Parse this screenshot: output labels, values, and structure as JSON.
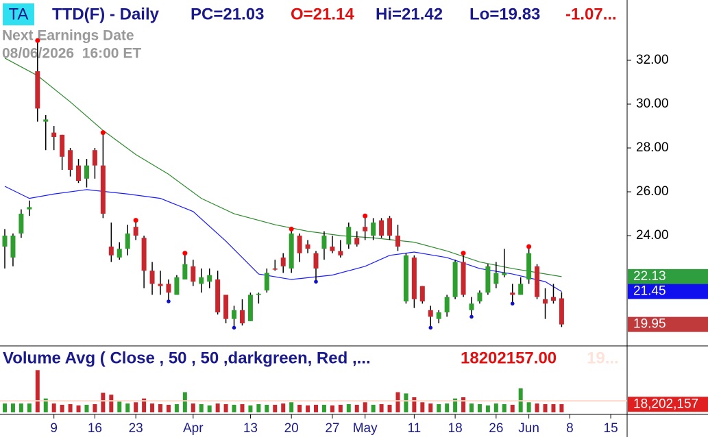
{
  "chart_data": {
    "type": "candlestick",
    "header": {
      "badge": "TA",
      "symbol": "TTD(F) - Daily",
      "pc": "PC=21.03",
      "open": "O=21.14",
      "high": "Hi=21.42",
      "low": "Lo=19.83",
      "change": "-1.07...",
      "note": "Next Earnings Date",
      "note_date": "08/06/2026  16:00 ET"
    },
    "open": [
      23.5,
      23.0,
      24.1,
      25.2,
      31.5,
      29.2,
      28.7,
      28.6,
      27.9,
      27.2,
      26.6,
      27.9,
      27.2,
      23.5,
      23.0,
      23.4,
      24.4,
      23.9,
      22.4,
      21.8,
      21.8,
      21.3,
      22.0,
      22.6,
      21.8,
      21.9,
      22.0,
      21.3,
      20.2,
      20.6,
      20.1,
      21.3,
      21.5,
      22.5,
      23.0,
      22.5,
      24.0,
      23.6,
      23.2,
      23.4,
      23.5,
      23.3,
      23.6,
      23.9,
      24.4,
      24.0,
      24.7,
      24.8,
      24.0,
      21.0,
      23.0,
      21.7,
      20.6,
      20.2,
      20.5,
      21.2,
      22.8,
      20.6,
      21.0,
      21.4,
      21.8,
      22.2,
      21.4,
      21.3,
      22.0,
      22.6,
      21.1,
      21.2,
      21.14
    ],
    "high": [
      24.3,
      24.1,
      25.2,
      25.6,
      32.9,
      29.5,
      29.0,
      28.6,
      28.0,
      27.5,
      27.5,
      28.0,
      28.7,
      24.6,
      23.7,
      24.5,
      24.7,
      24.0,
      22.8,
      22.4,
      22.0,
      22.2,
      23.2,
      22.9,
      22.5,
      22.5,
      22.4,
      21.3,
      20.8,
      21.1,
      21.4,
      21.4,
      22.5,
      22.9,
      23.2,
      24.3,
      24.1,
      23.8,
      23.3,
      24.2,
      24.0,
      23.8,
      24.6,
      24.2,
      24.9,
      24.8,
      24.8,
      24.9,
      24.5,
      23.2,
      23.1,
      21.7,
      20.8,
      20.6,
      21.3,
      22.9,
      23.2,
      21.2,
      21.5,
      22.7,
      22.8,
      23.4,
      21.8,
      22.1,
      23.5,
      22.7,
      21.6,
      21.8,
      21.42
    ],
    "low": [
      22.5,
      22.6,
      23.9,
      24.9,
      29.2,
      27.9,
      27.9,
      27.0,
      26.7,
      26.4,
      26.2,
      26.6,
      24.8,
      22.8,
      22.9,
      23.1,
      23.8,
      21.6,
      21.3,
      21.3,
      21.0,
      21.3,
      22.0,
      21.7,
      21.4,
      21.6,
      20.4,
      20.0,
      19.8,
      19.9,
      20.1,
      20.9,
      21.4,
      22.4,
      22.3,
      22.3,
      22.8,
      23.2,
      21.9,
      22.9,
      23.2,
      23.0,
      23.4,
      23.5,
      23.8,
      23.8,
      23.9,
      23.8,
      23.3,
      20.9,
      20.7,
      20.9,
      19.8,
      20.0,
      20.3,
      21.1,
      21.2,
      20.3,
      20.9,
      21.3,
      21.6,
      22.1,
      20.9,
      21.3,
      21.8,
      21.1,
      20.2,
      20.9,
      19.83
    ],
    "close": [
      24.0,
      24.0,
      25.0,
      25.3,
      29.8,
      29.3,
      28.5,
      27.6,
      27.0,
      26.5,
      27.2,
      27.2,
      25.0,
      23.1,
      23.4,
      24.1,
      24.0,
      22.4,
      21.8,
      21.7,
      21.4,
      22.1,
      22.7,
      21.9,
      22.1,
      22.2,
      20.5,
      20.2,
      20.6,
      20.0,
      21.3,
      21.35,
      22.3,
      22.45,
      22.6,
      24.1,
      23.2,
      23.4,
      22.5,
      24.0,
      23.3,
      23.1,
      24.4,
      23.6,
      24.2,
      24.6,
      24.0,
      24.0,
      23.5,
      23.1,
      21.1,
      21.0,
      20.3,
      20.5,
      21.2,
      22.8,
      21.3,
      20.9,
      21.4,
      22.6,
      22.3,
      22.3,
      21.3,
      21.8,
      23.2,
      21.2,
      20.9,
      21.03,
      19.95
    ],
    "up_color": "#2e9e2e",
    "down_color": "#c8282d",
    "high_markers": [
      4,
      12,
      16,
      22,
      35,
      44,
      56,
      64
    ],
    "high_marker_color": "#ff0000",
    "low_markers": [
      20,
      28,
      38,
      52,
      57,
      62
    ],
    "low_marker_color": "#1010c8",
    "lines": [
      {
        "color": "#2e8b2e",
        "x": [
          0,
          4,
          8,
          12,
          16,
          20,
          24,
          28,
          33,
          37,
          41,
          45,
          50,
          54,
          58,
          62,
          68
        ],
        "values": [
          32.1,
          31.3,
          30.1,
          28.8,
          27.7,
          26.8,
          25.7,
          25.0,
          24.5,
          24.2,
          24.0,
          23.9,
          23.7,
          23.3,
          22.8,
          22.5,
          22.13
        ]
      },
      {
        "color": "#1a1aff",
        "x": [
          0,
          3,
          6,
          10,
          15,
          19,
          23,
          27,
          31,
          35,
          40,
          44,
          47,
          50,
          54,
          58,
          62,
          66,
          68
        ],
        "values": [
          26.25,
          25.7,
          25.9,
          26.1,
          25.9,
          25.7,
          25.1,
          23.75,
          22.25,
          22.0,
          22.2,
          22.6,
          23.1,
          23.25,
          23.0,
          22.5,
          22.25,
          21.9,
          21.45
        ]
      }
    ],
    "ylim": [
      18.97,
      34.75
    ],
    "yticks": [
      {
        "value": 24,
        "label": "24.00"
      },
      {
        "value": 26,
        "label": "26.00"
      },
      {
        "value": 28,
        "label": "28.00"
      },
      {
        "value": 30,
        "label": "30.00"
      },
      {
        "value": 32,
        "label": "32.00"
      }
    ],
    "xlim": [
      -0.586,
      76
    ],
    "xticks": [
      {
        "value": 6,
        "label": "9"
      },
      {
        "value": 11,
        "label": "16"
      },
      {
        "value": 16,
        "label": "23"
      },
      {
        "value": 23,
        "label": "Apr"
      },
      {
        "value": 30,
        "label": "13"
      },
      {
        "value": 35,
        "label": "20"
      },
      {
        "value": 40,
        "label": "27"
      },
      {
        "value": 44,
        "label": "May"
      },
      {
        "value": 50,
        "label": "11"
      },
      {
        "value": 55,
        "label": "18"
      },
      {
        "value": 60,
        "label": "26"
      },
      {
        "value": 64,
        "label": "Jun"
      },
      {
        "value": 69,
        "label": "8"
      },
      {
        "value": 74,
        "label": "15"
      }
    ],
    "volume": {
      "title": "Volume Avg ( Close , 50 , 50 ,darkgreen, Red ,...",
      "avg": 18202157,
      "avg_label": "18202157.00",
      "avg_box_label": "18,202,157",
      "faded": "19...",
      "ylim": [
        0,
        100000000
      ],
      "values": [
        14000000,
        14000000,
        14000000,
        14000000,
        67000000,
        22000000,
        14000000,
        12000000,
        13000000,
        11000000,
        12000000,
        13000000,
        31000000,
        28000000,
        17000000,
        14000000,
        16000000,
        22000000,
        14000000,
        13000000,
        12000000,
        13000000,
        32000000,
        14000000,
        13000000,
        11000000,
        14000000,
        13000000,
        12000000,
        13000000,
        11000000,
        13000000,
        12000000,
        12000000,
        14000000,
        16000000,
        12000000,
        11000000,
        12000000,
        12000000,
        11000000,
        12000000,
        13000000,
        12000000,
        16000000,
        12000000,
        13000000,
        12000000,
        32000000,
        30000000,
        24000000,
        16000000,
        14000000,
        13000000,
        14000000,
        22000000,
        24000000,
        14000000,
        13000000,
        11000000,
        14000000,
        13000000,
        12000000,
        38000000,
        16000000,
        14000000,
        13000000,
        13000000,
        13000000
      ]
    }
  }
}
